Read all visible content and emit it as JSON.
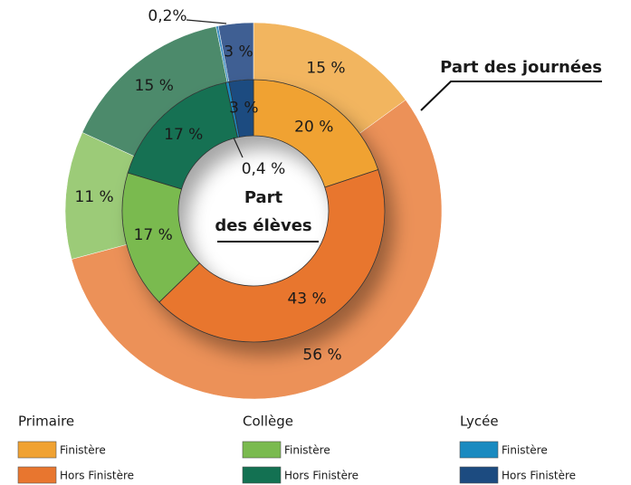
{
  "chart_data": {
    "type": "nested-donut",
    "series": [
      {
        "name": "Part des journées",
        "values": [
          15,
          56,
          11,
          15,
          0.2,
          3
        ],
        "value_labels": [
          "15 %",
          "56 %",
          "11 %",
          "15 %",
          "0,2%",
          "3 %"
        ],
        "colors": [
          "#f2b55f",
          "#ec9158",
          "#9ccb78",
          "#4c8a6b",
          "#3a8cc0",
          "#3f5f93"
        ]
      },
      {
        "name": "Part des élèves",
        "values": [
          20,
          43,
          17,
          17,
          0.4,
          3
        ],
        "value_labels": [
          "20 %",
          "43 %",
          "17 %",
          "17 %",
          "0,4 %",
          "3 %"
        ],
        "colors": [
          "#f0a232",
          "#e8762f",
          "#7aba4f",
          "#137152",
          "#1a8ac0",
          "#1c4b80"
        ]
      }
    ],
    "legend": [
      {
        "title": "Primaire",
        "items": [
          "Finistère",
          "Hors Finistère"
        ]
      },
      {
        "title": "Collège",
        "items": [
          "Finistère",
          "Hors Finistère"
        ]
      },
      {
        "title": "Lycée",
        "items": [
          "Finistère",
          "Hors Finistère"
        ]
      }
    ]
  }
}
